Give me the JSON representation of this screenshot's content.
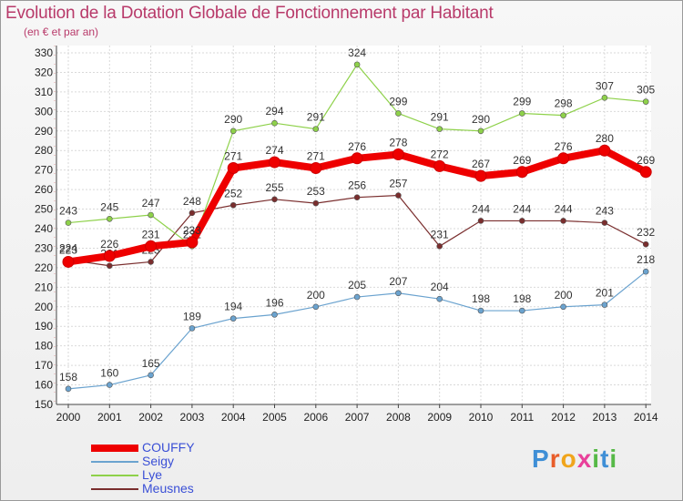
{
  "header": {
    "title": "Evolution de la Dotation Globale de Fonctionnement par Habitant",
    "subtitle": "(en € et par an)"
  },
  "chart_data": {
    "type": "line",
    "title": "Evolution de la Dotation Globale de Fonctionnement par Habitant",
    "subtitle": "(en € et par an)",
    "xlabel": "",
    "ylabel": "",
    "x": [
      2000,
      2001,
      2002,
      2003,
      2004,
      2005,
      2006,
      2007,
      2008,
      2009,
      2010,
      2011,
      2012,
      2013,
      2014
    ],
    "ylim": [
      150,
      330
    ],
    "yticks": [
      150,
      160,
      170,
      180,
      190,
      200,
      210,
      220,
      230,
      240,
      250,
      260,
      270,
      280,
      290,
      300,
      310,
      320,
      330
    ],
    "grid": true,
    "legend_position": "bottom-left",
    "series": [
      {
        "name": "COUFFY",
        "color": "#ee0000",
        "values": [
          223,
          226,
          231,
          233,
          271,
          274,
          271,
          276,
          278,
          272,
          267,
          269,
          276,
          280,
          269
        ]
      },
      {
        "name": "Seigy",
        "color": "#6ba3cf",
        "values": [
          158,
          160,
          165,
          189,
          194,
          196,
          200,
          205,
          207,
          204,
          198,
          198,
          200,
          201,
          218
        ]
      },
      {
        "name": "Lye",
        "color": "#8ed14a",
        "values": [
          243,
          245,
          247,
          231,
          290,
          294,
          291,
          324,
          299,
          291,
          290,
          299,
          298,
          307,
          305
        ]
      },
      {
        "name": "Meusnes",
        "color": "#7a2e2e",
        "values": [
          224,
          221,
          223,
          248,
          252,
          255,
          253,
          256,
          257,
          231,
          244,
          244,
          244,
          243,
          232
        ]
      }
    ]
  },
  "brand": {
    "text": "Proxiti"
  }
}
